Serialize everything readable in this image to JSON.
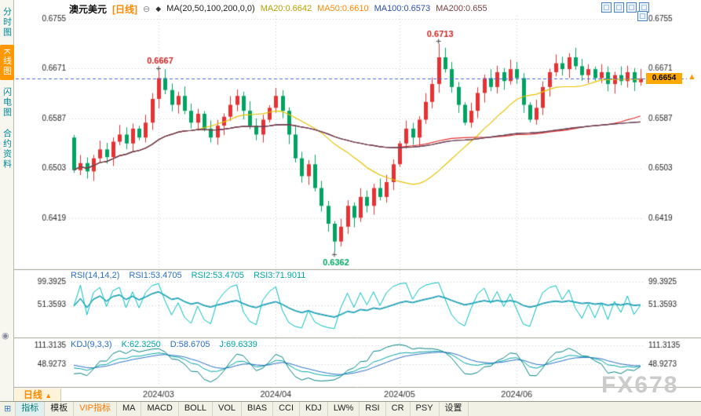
{
  "app": {
    "watermark": "FX678"
  },
  "icons": {
    "collapse": "⊖",
    "ma": "◆",
    "grid": "⊞",
    "panel": "◉",
    "price_arrow": "▲"
  },
  "header": {
    "symbol": "澳元美元",
    "period_tag": "[日线]",
    "ma_label": "MA(20,50,100,200,0,0)",
    "ma_values": [
      {
        "text": "MA20:0.6642",
        "color": "#b8a000"
      },
      {
        "text": "MA50:0.6610",
        "color": "#ff8800"
      },
      {
        "text": "MA100:0.6573",
        "color": "#2b4fad"
      },
      {
        "text": "MA200:0.655",
        "color": "#7a4040"
      }
    ]
  },
  "sidebar": {
    "items": [
      {
        "label": "分时图",
        "active": false
      },
      {
        "label": "K线图",
        "active": true
      },
      {
        "label": "闪电图",
        "active": false
      },
      {
        "label": "合约资料",
        "active": false
      }
    ]
  },
  "window_controls": [
    "new-window-icon",
    "tile-windows-icon",
    "cascade-windows-icon",
    "maximize-icon",
    "float-window-icon"
  ],
  "price_tag": {
    "value": "0.6654"
  },
  "rsi_panel": {
    "title": "RSI(14,14,2)",
    "values": [
      {
        "text": "RSI1:53.4705",
        "color": "#2b6fc2"
      },
      {
        "text": "RSI2:53.4705",
        "color": "#00a5a5"
      },
      {
        "text": "RSI3:71.9011",
        "color": "#00a5a5"
      }
    ]
  },
  "kdj_panel": {
    "title": "KDJ(9,3,3)",
    "values": [
      {
        "text": "K:62.3250",
        "color": "#00a5a5"
      },
      {
        "text": "D:58.6705",
        "color": "#2b6fc2"
      },
      {
        "text": "J:69.6339",
        "color": "#00a5a5"
      }
    ]
  },
  "period_tab": {
    "label": "日线",
    "arrow": "▲"
  },
  "toolbar": {
    "items": [
      {
        "label": "指标",
        "color": "#007a7a",
        "active": true
      },
      {
        "label": "模板",
        "color": "#222222",
        "active": false
      },
      {
        "label": "VIP指标",
        "color": "#ff7700",
        "active": false
      },
      {
        "label": "MA",
        "color": "#222222",
        "active": false
      },
      {
        "label": "MACD",
        "color": "#222222",
        "active": false
      },
      {
        "label": "BOLL",
        "color": "#222222",
        "active": false
      },
      {
        "label": "VOL",
        "color": "#222222",
        "active": false
      },
      {
        "label": "BIAS",
        "color": "#222222",
        "active": false
      },
      {
        "label": "CCI",
        "color": "#222222",
        "active": false
      },
      {
        "label": "KDJ",
        "color": "#222222",
        "active": false
      },
      {
        "label": "LW%",
        "color": "#222222",
        "active": false
      },
      {
        "label": "RSI",
        "color": "#222222",
        "active": false
      },
      {
        "label": "CR",
        "color": "#222222",
        "active": false
      },
      {
        "label": "PSY",
        "color": "#222222",
        "active": false
      },
      {
        "label": "设置",
        "color": "#222222",
        "active": false
      }
    ]
  },
  "chart_data": {
    "type": "candlestick",
    "title": "澳元美元 日线",
    "y_ticks": [
      0.6755,
      0.6671,
      0.6587,
      0.6503,
      0.6419
    ],
    "y_range": [
      0.634,
      0.676
    ],
    "x_labels": [
      {
        "label": "2024/03",
        "index": 13
      },
      {
        "label": "2024/04",
        "index": 31
      },
      {
        "label": "2024/05",
        "index": 50
      },
      {
        "label": "2024/06",
        "index": 68
      }
    ],
    "first_open": 0.6555,
    "default_wick": 0.0009,
    "closes": [
      0.65,
      0.6512,
      0.6498,
      0.652,
      0.6535,
      0.6522,
      0.6548,
      0.656,
      0.6545,
      0.657,
      0.6555,
      0.658,
      0.662,
      0.6655,
      0.6635,
      0.661,
      0.6625,
      0.66,
      0.658,
      0.6595,
      0.657,
      0.6555,
      0.6575,
      0.659,
      0.661,
      0.6625,
      0.66,
      0.6575,
      0.656,
      0.6585,
      0.6605,
      0.6625,
      0.66,
      0.656,
      0.652,
      0.649,
      0.651,
      0.647,
      0.644,
      0.641,
      0.638,
      0.6405,
      0.644,
      0.642,
      0.6455,
      0.644,
      0.647,
      0.6455,
      0.648,
      0.651,
      0.6545,
      0.657,
      0.6555,
      0.6585,
      0.6615,
      0.6645,
      0.669,
      0.667,
      0.664,
      0.661,
      0.658,
      0.66,
      0.663,
      0.6655,
      0.664,
      0.6665,
      0.665,
      0.667,
      0.6655,
      0.661,
      0.6585,
      0.6605,
      0.664,
      0.6665,
      0.668,
      0.667,
      0.669,
      0.6675,
      0.666,
      0.667,
      0.6655,
      0.6665,
      0.6645,
      0.666,
      0.665,
      0.6665,
      0.6648,
      0.6654
    ],
    "current_price": 0.6654,
    "annotations": [
      {
        "index": 13,
        "price": 0.6667,
        "label": "0.6667",
        "side": "above",
        "color": "#cc2222"
      },
      {
        "index": 56,
        "price": 0.6713,
        "label": "0.6713",
        "side": "above",
        "color": "#cc2222"
      },
      {
        "index": 40,
        "price": 0.6362,
        "label": "0.6362",
        "side": "below",
        "color": "#00a362"
      }
    ],
    "up_color": "#e63232",
    "down_color": "#00a362",
    "ma": [
      {
        "period": 20,
        "color": "#e6c300"
      },
      {
        "period": 50,
        "color": "#e03030"
      },
      {
        "period": 100,
        "color": "#2b4fad"
      },
      {
        "period": 200,
        "color": "#7a4040"
      }
    ],
    "rsi": {
      "periods": [
        14,
        14,
        2
      ],
      "ticks": [
        99.3925,
        51.3593
      ],
      "range": [
        -10,
        115
      ],
      "colors": [
        "#2b8fbf",
        "#00a5a5",
        "#00bdbd"
      ]
    },
    "kdj": {
      "params": [
        9,
        3,
        3
      ],
      "ticks": [
        111.3135,
        48.9273
      ],
      "range": [
        -25,
        128
      ],
      "colors": [
        "#00a5a5",
        "#2b6fc2",
        "#008080"
      ]
    }
  }
}
